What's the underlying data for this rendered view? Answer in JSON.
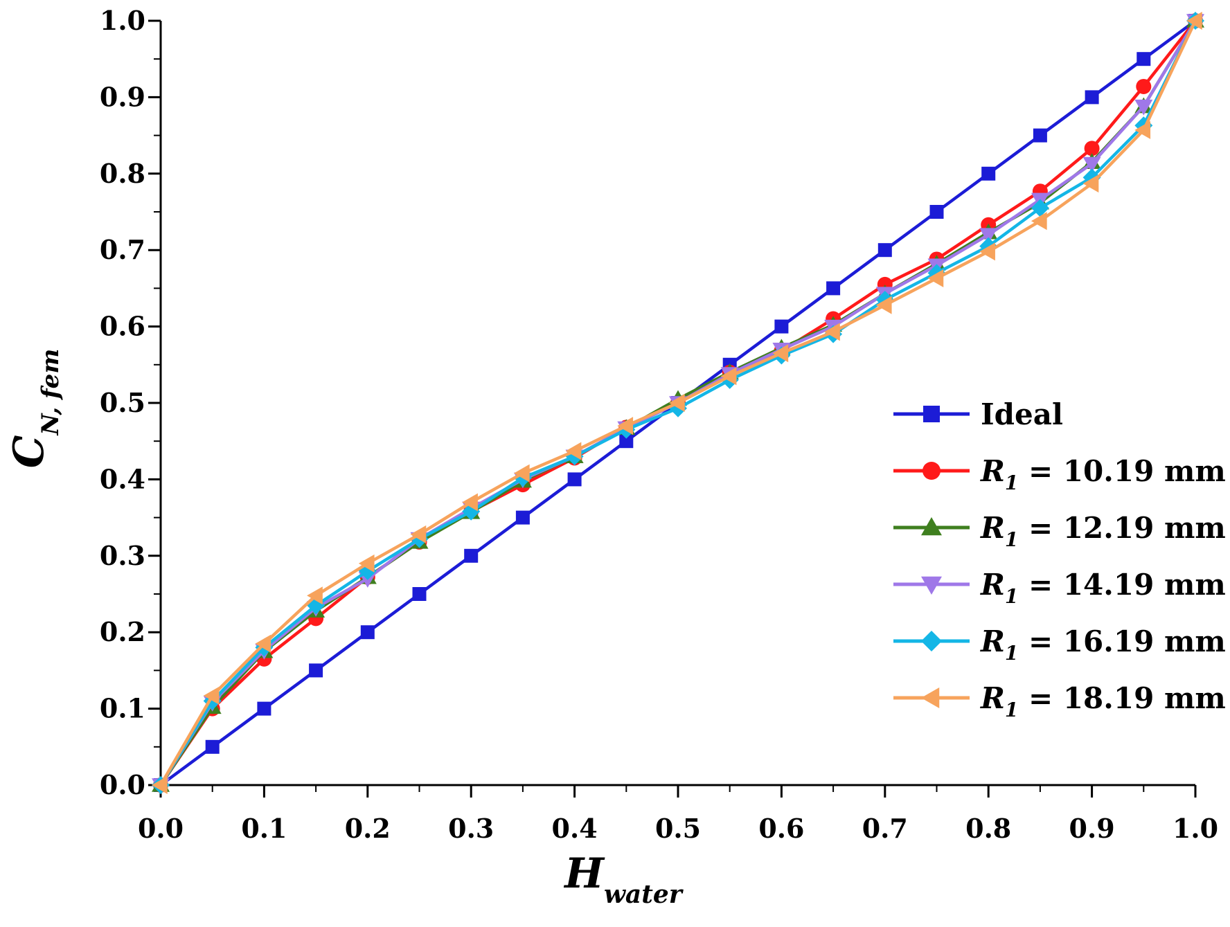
{
  "chart_data": {
    "type": "line",
    "title": "",
    "xlabel": {
      "main": "H",
      "sub": "water"
    },
    "ylabel": {
      "main": "C",
      "sub": "N, fem"
    },
    "xlim": [
      0.0,
      1.0
    ],
    "ylim": [
      0.0,
      1.0
    ],
    "x_ticks": [
      "0.0",
      "0.1",
      "0.2",
      "0.3",
      "0.4",
      "0.5",
      "0.6",
      "0.7",
      "0.8",
      "0.9",
      "1.0"
    ],
    "y_ticks": [
      "0.0",
      "0.1",
      "0.2",
      "0.3",
      "0.4",
      "0.5",
      "0.6",
      "0.7",
      "0.8",
      "0.9",
      "1.0"
    ],
    "grid": false,
    "legend_position": "bottom-right",
    "x": [
      0.0,
      0.05,
      0.1,
      0.15,
      0.2,
      0.25,
      0.3,
      0.35,
      0.4,
      0.45,
      0.5,
      0.55,
      0.6,
      0.65,
      0.7,
      0.75,
      0.8,
      0.85,
      0.9,
      0.95,
      1.0
    ],
    "series": [
      {
        "name": "Ideal",
        "label_main": "Ideal",
        "label_sub": "",
        "label_rest": "",
        "color": "#1c1cd6",
        "marker": "square",
        "values": [
          0.0,
          0.05,
          0.1,
          0.15,
          0.2,
          0.25,
          0.3,
          0.35,
          0.4,
          0.45,
          0.5,
          0.55,
          0.6,
          0.65,
          0.7,
          0.75,
          0.8,
          0.85,
          0.9,
          0.95,
          1.0
        ]
      },
      {
        "name": "R1 = 10.19 mm",
        "label_main": "R",
        "label_sub": "1",
        "label_rest": " = 10.19 mm",
        "color": "#ff1a1a",
        "marker": "circle",
        "values": [
          0.0,
          0.1,
          0.165,
          0.218,
          0.272,
          0.318,
          0.358,
          0.393,
          0.428,
          0.468,
          0.5,
          0.54,
          0.568,
          0.61,
          0.655,
          0.688,
          0.733,
          0.777,
          0.833,
          0.914,
          1.0
        ]
      },
      {
        "name": "R1 = 12.19 mm",
        "label_main": "R",
        "label_sub": "1",
        "label_rest": " = 12.19 mm",
        "color": "#3f7f1f",
        "marker": "triangle-up",
        "values": [
          0.0,
          0.102,
          0.175,
          0.228,
          0.272,
          0.318,
          0.357,
          0.398,
          0.43,
          0.467,
          0.505,
          0.54,
          0.572,
          0.602,
          0.643,
          0.682,
          0.723,
          0.762,
          0.815,
          0.888,
          1.0
        ]
      },
      {
        "name": "R1 = 14.19 mm",
        "label_main": "R",
        "label_sub": "1",
        "label_rest": " = 14.19 mm",
        "color": "#9f78e8",
        "marker": "triangle-down",
        "values": [
          0.0,
          0.108,
          0.176,
          0.232,
          0.27,
          0.322,
          0.362,
          0.4,
          0.43,
          0.467,
          0.5,
          0.538,
          0.57,
          0.6,
          0.643,
          0.68,
          0.72,
          0.766,
          0.813,
          0.888,
          1.0
        ]
      },
      {
        "name": "R1 = 16.19 mm",
        "label_main": "R",
        "label_sub": "1",
        "label_rest": " = 16.19 mm",
        "color": "#14b6e6",
        "marker": "diamond",
        "values": [
          0.0,
          0.11,
          0.18,
          0.235,
          0.28,
          0.322,
          0.358,
          0.402,
          0.43,
          0.465,
          0.493,
          0.53,
          0.562,
          0.59,
          0.635,
          0.67,
          0.705,
          0.755,
          0.795,
          0.863,
          1.0
        ]
      },
      {
        "name": "R1 = 18.19 mm",
        "label_main": "R",
        "label_sub": "1",
        "label_rest": " = 18.19 mm",
        "color": "#f7a35c",
        "marker": "triangle-left",
        "values": [
          0.0,
          0.117,
          0.185,
          0.248,
          0.29,
          0.328,
          0.37,
          0.408,
          0.437,
          0.47,
          0.5,
          0.535,
          0.565,
          0.593,
          0.628,
          0.663,
          0.698,
          0.738,
          0.787,
          0.857,
          1.0
        ]
      }
    ]
  }
}
